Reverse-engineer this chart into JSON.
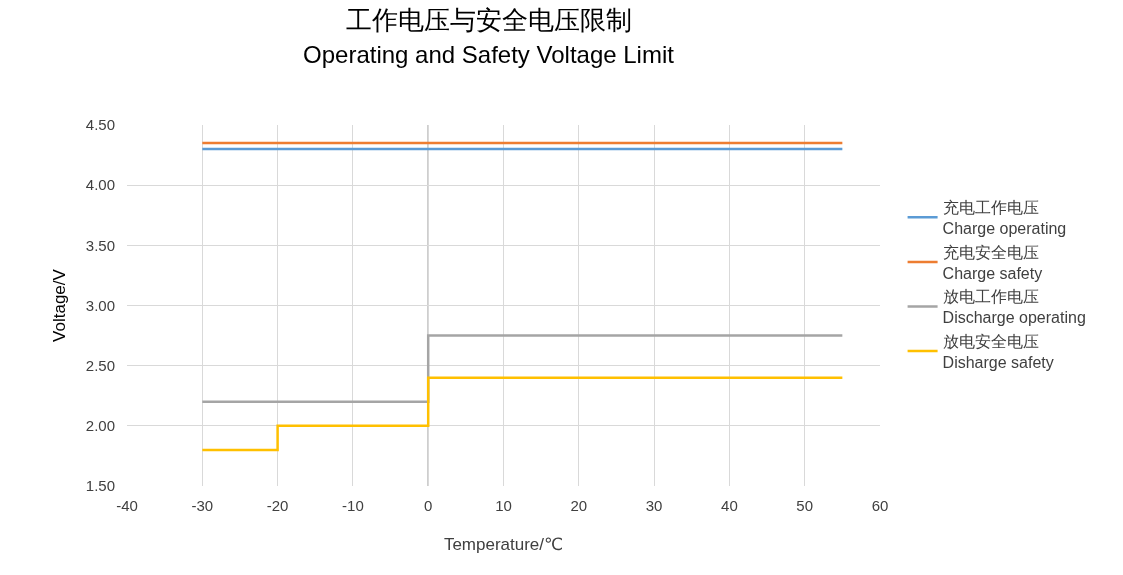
{
  "chart_data": {
    "type": "step",
    "title": "工作电压与安全电压限制",
    "subtitle": "Operating and Safety Voltage Limit",
    "xlabel": "Temperature/℃",
    "ylabel": "Voltage/V",
    "series": [
      {
        "name": "充电工作电压\nCharge operating",
        "color": "#5b9bd5",
        "x": [
          -30,
          55
        ],
        "values": [
          4.3,
          4.3
        ]
      },
      {
        "name": "充电安全电压\nCharge safety",
        "color": "#ed7d31",
        "x": [
          -30,
          55
        ],
        "values": [
          4.35,
          4.35
        ]
      },
      {
        "name": "放电工作电压\nDischarge operating",
        "color": "#a5a5a5",
        "x": [
          -30,
          0,
          55
        ],
        "values": [
          2.2,
          2.75,
          2.75
        ]
      },
      {
        "name": "放电安全电压\nDisharge safety",
        "color": "#ffc000",
        "x": [
          -30,
          -20,
          0,
          55
        ],
        "values": [
          1.8,
          2.0,
          2.4,
          2.4
        ]
      }
    ],
    "xlim": [
      -40,
      60
    ],
    "xticks": [
      -40,
      -30,
      -20,
      -10,
      0,
      10,
      20,
      30,
      40,
      50,
      60
    ],
    "ylim": [
      1.5,
      4.5
    ],
    "yticks": [
      {
        "value": 1.5,
        "label": "1.50"
      },
      {
        "value": 2,
        "label": "2.00"
      },
      {
        "value": 2.5,
        "label": "2.50"
      },
      {
        "value": 3,
        "label": "3.00"
      },
      {
        "value": 3.5,
        "label": "3.50"
      },
      {
        "value": 4,
        "label": "4.00"
      },
      {
        "value": 4.5,
        "label": "4.50"
      }
    ],
    "ref_lines": [
      {
        "axis": "x",
        "value": 0,
        "color": "#a6a6a6"
      }
    ],
    "grid": true,
    "legend": "right",
    "marker": "none",
    "line_style": "solid"
  }
}
